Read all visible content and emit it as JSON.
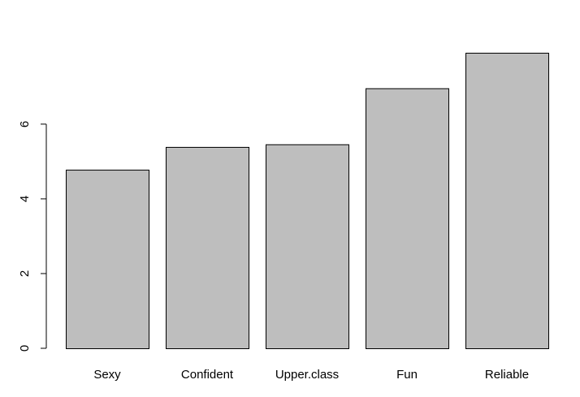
{
  "chart_data": {
    "type": "bar",
    "categories": [
      "Sexy",
      "Confident",
      "Upper.class",
      "Fun",
      "Reliable"
    ],
    "values": [
      4.78,
      5.39,
      5.46,
      6.96,
      7.91
    ],
    "color": "#bebebe",
    "ylim": [
      0,
      7.91
    ],
    "yticks": [
      0,
      2,
      4,
      6
    ],
    "grid": false
  }
}
